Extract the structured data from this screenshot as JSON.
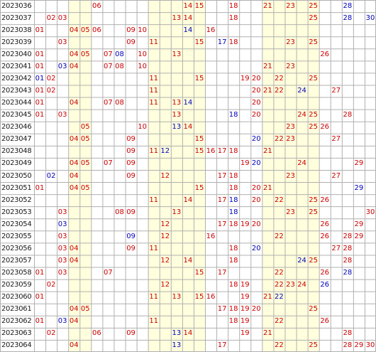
{
  "title": "",
  "columns": [
    "01",
    "02",
    "03",
    "04",
    "05",
    "06",
    "07",
    "08",
    "09",
    "10",
    "11",
    "12",
    "13",
    "14",
    "15",
    "16",
    "17",
    "18",
    "19",
    "20",
    "21",
    "22",
    "23",
    "24",
    "25",
    "26",
    "27",
    "28",
    "29",
    "30"
  ],
  "shaded_columns": [
    "04",
    "05",
    "11",
    "12",
    "13",
    "14",
    "15",
    "21",
    "22",
    "23",
    "24",
    "25"
  ],
  "colors": {
    "red": "#cc0000",
    "blue": "#0000bb",
    "shade": "#ffffdd",
    "grid": "#b0b0b0",
    "issue_text": "#1a1a1a"
  },
  "rows": [
    {
      "issue": "2023036",
      "red": [
        "06",
        "14",
        "15",
        "18",
        "21",
        "23",
        "25"
      ],
      "blue": [
        "28"
      ]
    },
    {
      "issue": "2023037",
      "red": [
        "02",
        "03",
        "13",
        "14",
        "18",
        "25"
      ],
      "blue": [
        "28",
        "30"
      ]
    },
    {
      "issue": "2023038",
      "red": [
        "01",
        "04",
        "05",
        "06",
        "09",
        "10",
        "16"
      ],
      "blue": [
        "14"
      ]
    },
    {
      "issue": "2023039",
      "red": [
        "03",
        "09",
        "11",
        "15",
        "18",
        "23",
        "25"
      ],
      "blue": [
        "17"
      ]
    },
    {
      "issue": "2023040",
      "red": [
        "01",
        "04",
        "05",
        "07",
        "10",
        "13",
        "26"
      ],
      "blue": [
        "08"
      ]
    },
    {
      "issue": "2023041",
      "red": [
        "01",
        "04",
        "07",
        "08",
        "10",
        "21",
        "23"
      ],
      "blue": [
        "03"
      ]
    },
    {
      "issue": "2023042",
      "red": [
        "02",
        "11",
        "15",
        "19",
        "20",
        "22",
        "25"
      ],
      "blue": [
        "01"
      ]
    },
    {
      "issue": "2023043",
      "red": [
        "01",
        "02",
        "11",
        "20",
        "21",
        "22",
        "27"
      ],
      "blue": [
        "24"
      ]
    },
    {
      "issue": "2023044",
      "red": [
        "01",
        "04",
        "07",
        "08",
        "11",
        "13",
        "20"
      ],
      "blue": [
        "14"
      ]
    },
    {
      "issue": "2023045",
      "red": [
        "01",
        "03",
        "13",
        "20",
        "24",
        "25",
        "28"
      ],
      "blue": [
        "18"
      ]
    },
    {
      "issue": "2023046",
      "red": [
        "05",
        "10",
        "14",
        "23",
        "25",
        "26"
      ],
      "blue": [
        "13"
      ]
    },
    {
      "issue": "2023047",
      "red": [
        "04",
        "05",
        "09",
        "15",
        "22",
        "23",
        "27"
      ],
      "blue": [
        "20"
      ]
    },
    {
      "issue": "2023048",
      "red": [
        "09",
        "11",
        "15",
        "16",
        "17",
        "18",
        "21"
      ],
      "blue": [
        "12"
      ]
    },
    {
      "issue": "2023049",
      "red": [
        "04",
        "05",
        "07",
        "09",
        "19",
        "24",
        "29"
      ],
      "blue": [
        "20"
      ]
    },
    {
      "issue": "2023050",
      "red": [
        "04",
        "09",
        "12",
        "17",
        "18",
        "23",
        "27"
      ],
      "blue": [
        "02"
      ]
    },
    {
      "issue": "2023051",
      "red": [
        "01",
        "04",
        "05",
        "15",
        "18",
        "20",
        "21"
      ],
      "blue": [
        "29"
      ]
    },
    {
      "issue": "2023052",
      "red": [
        "11",
        "14",
        "17",
        "20",
        "22",
        "25",
        "26"
      ],
      "blue": [
        "18"
      ]
    },
    {
      "issue": "2023053",
      "red": [
        "03",
        "08",
        "09",
        "13",
        "23",
        "25",
        "30"
      ],
      "blue": [
        "18"
      ]
    },
    {
      "issue": "2023054",
      "red": [
        "12",
        "17",
        "18",
        "19",
        "20",
        "26",
        "29"
      ],
      "blue": [
        "03"
      ]
    },
    {
      "issue": "2023055",
      "red": [
        "03",
        "12",
        "16",
        "22",
        "26",
        "28",
        "29"
      ],
      "blue": [
        "09"
      ]
    },
    {
      "issue": "2023056",
      "red": [
        "03",
        "04",
        "09",
        "11",
        "18",
        "27",
        "28"
      ],
      "blue": [
        "20"
      ]
    },
    {
      "issue": "2023057",
      "red": [
        "03",
        "04",
        "12",
        "14",
        "18",
        "25",
        "28"
      ],
      "blue": [
        "24"
      ]
    },
    {
      "issue": "2023058",
      "red": [
        "01",
        "03",
        "07",
        "15",
        "17",
        "22",
        "26"
      ],
      "blue": [
        "28"
      ]
    },
    {
      "issue": "2023059",
      "red": [
        "02",
        "12",
        "18",
        "19",
        "22",
        "23",
        "24"
      ],
      "blue": [
        "26"
      ]
    },
    {
      "issue": "2023060",
      "red": [
        "01",
        "11",
        "13",
        "15",
        "16",
        "19",
        "21"
      ],
      "blue": [
        "22"
      ]
    },
    {
      "issue": "2023061",
      "red": [
        "04",
        "05",
        "17",
        "18",
        "19",
        "20",
        "25"
      ],
      "blue": []
    },
    {
      "issue": "2023062",
      "red": [
        "01",
        "04",
        "11",
        "18",
        "19",
        "22",
        "26"
      ],
      "blue": [
        "03"
      ]
    },
    {
      "issue": "2023063",
      "red": [
        "02",
        "06",
        "09",
        "14",
        "19",
        "21",
        "28"
      ],
      "blue": [
        "13"
      ]
    },
    {
      "issue": "2023064",
      "red": [
        "04",
        "17",
        "22",
        "25",
        "28",
        "29",
        "30"
      ],
      "blue": [
        "13"
      ]
    }
  ]
}
